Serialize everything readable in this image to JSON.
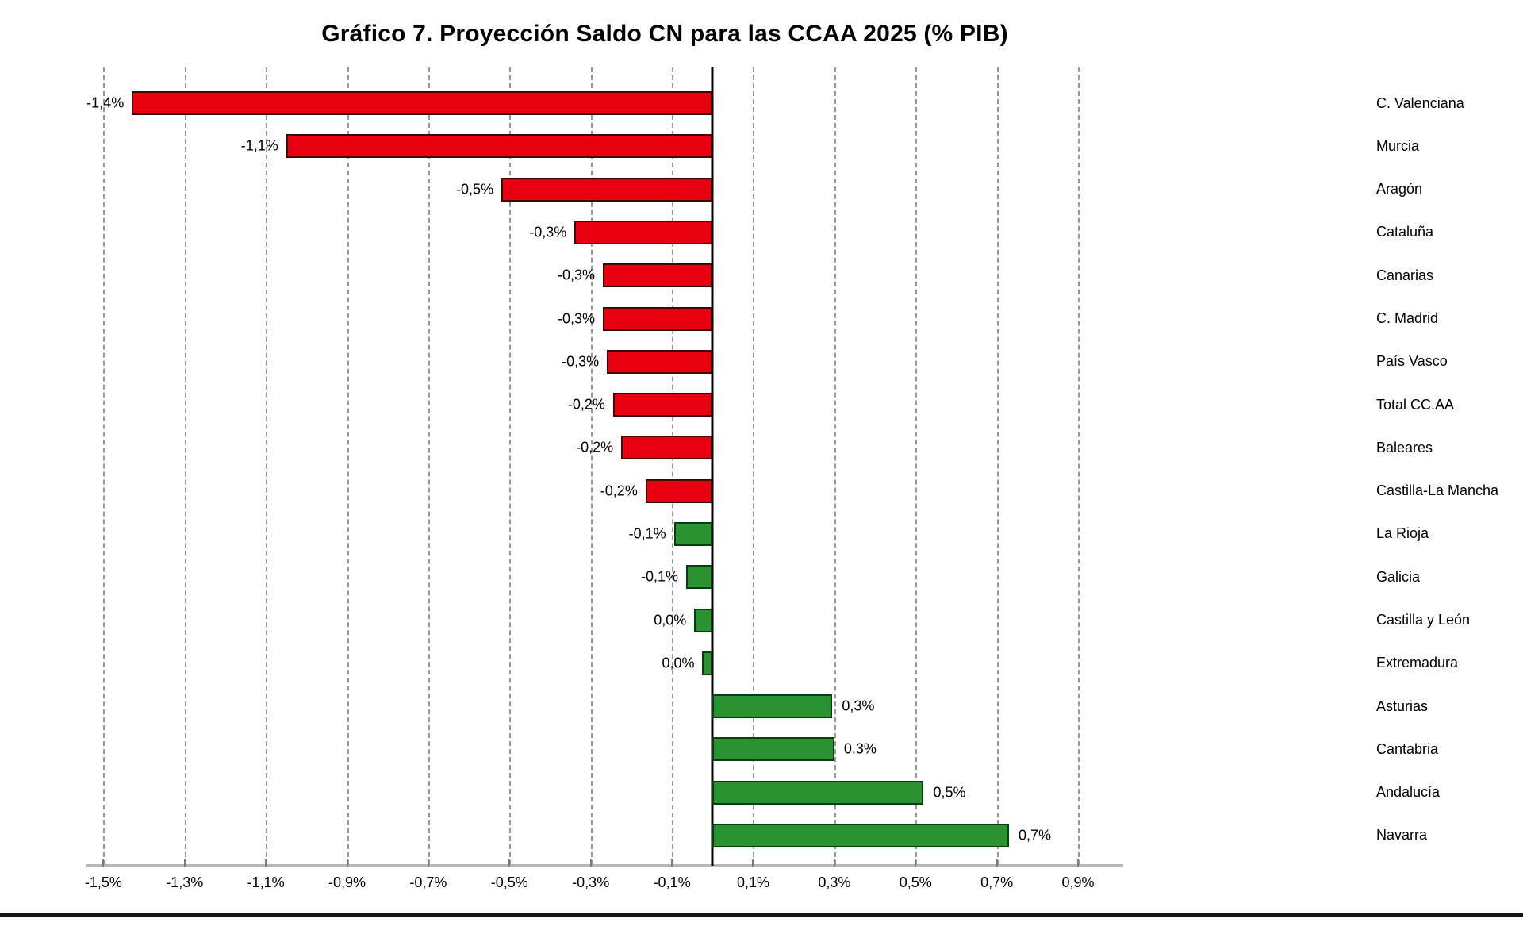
{
  "title": "Gráfico 7. Proyección Saldo CN para las CCAA 2025 (% PIB)",
  "chart_data": {
    "type": "bar",
    "orientation": "horizontal",
    "title": "Gráfico 7. Proyección Saldo CN para las CCAA 2025 (% PIB)",
    "unit": "% PIB",
    "grid": true,
    "legend": false,
    "categories": [
      "C. Valenciana",
      "Murcia",
      "Aragón",
      "Cataluña",
      "Canarias",
      "C. Madrid",
      "País Vasco",
      "Total CC.AA",
      "Baleares",
      "Castilla-La Mancha",
      "La Rioja",
      "Galicia",
      "Castilla y León",
      "Extremadura",
      "Asturias",
      "Cantabria",
      "Andalucía",
      "Navarra"
    ],
    "values": [
      -1.43,
      -1.05,
      -0.52,
      -0.34,
      -0.27,
      -0.27,
      -0.26,
      -0.245,
      -0.225,
      -0.165,
      -0.095,
      -0.065,
      -0.045,
      -0.025,
      0.295,
      0.3,
      0.52,
      0.73
    ],
    "value_labels": [
      "-1,4%",
      "-1,1%",
      "-0,5%",
      "-0,3%",
      "-0,3%",
      "-0,3%",
      "-0,3%",
      "-0,2%",
      "-0,2%",
      "-0,2%",
      "-0,1%",
      "-0,1%",
      "0,0%",
      "0,0%",
      "0,3%",
      "0,3%",
      "0,5%",
      "0,7%"
    ],
    "bar_colors": [
      "red",
      "red",
      "red",
      "red",
      "red",
      "red",
      "red",
      "red",
      "red",
      "red",
      "green",
      "green",
      "green",
      "green",
      "green",
      "green",
      "green",
      "green"
    ],
    "x_tick_labels": [
      "-1,5%",
      "-1,3%",
      "-1,1%",
      "-0,9%",
      "-0,7%",
      "-0,5%",
      "-0,3%",
      "-0,1%",
      "0,1%",
      "0,3%",
      "0,5%",
      "0,7%",
      "0,9%"
    ],
    "x_tick_values": [
      -1.5,
      -1.3,
      -1.1,
      -0.9,
      -0.7,
      -0.5,
      -0.3,
      -0.1,
      0.1,
      0.3,
      0.5,
      0.7,
      0.9
    ],
    "xlim": [
      -1.53,
      0.98
    ],
    "colors": {
      "negative_fill": "#e8000f",
      "negative_border": "#3f0606",
      "positive_fill": "#2a9230",
      "positive_border": "#0a3d10",
      "gridline": "#979797",
      "zero_line": "#000000",
      "axis_line": "#b8b8b8",
      "text": "#000000"
    }
  }
}
